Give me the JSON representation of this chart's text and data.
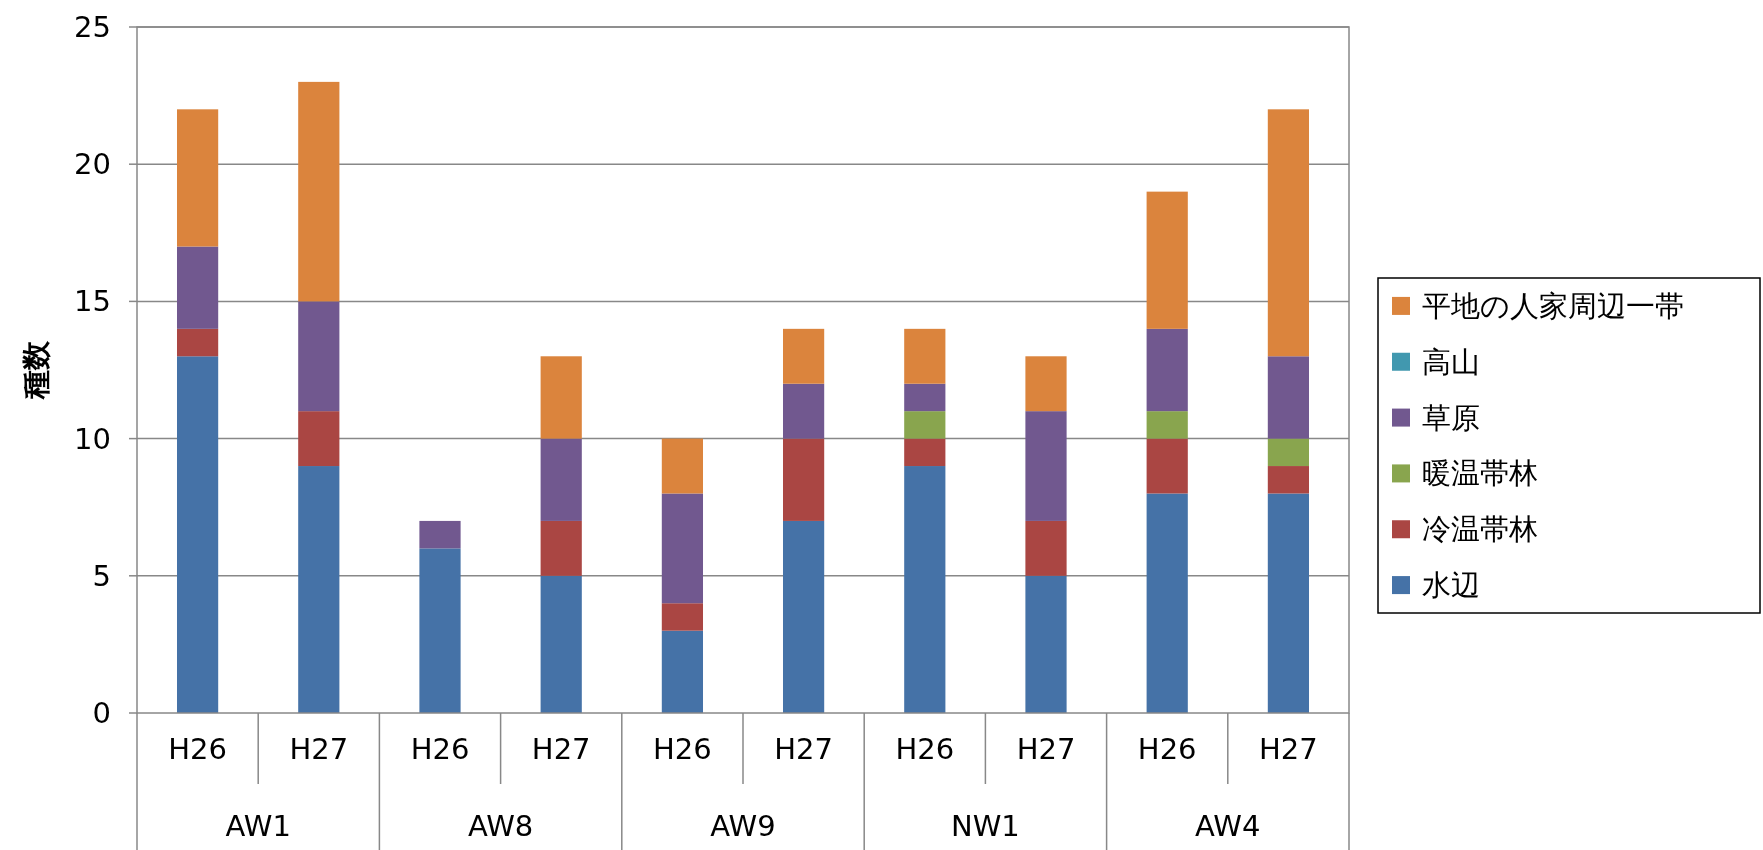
{
  "chart_data": {
    "type": "bar",
    "stacked": true,
    "ylabel": "種数",
    "categories": [
      "H26",
      "H27",
      "H26",
      "H27",
      "H26",
      "H27",
      "H26",
      "H27",
      "H26",
      "H27"
    ],
    "annotations": [
      "AW1",
      "AW8",
      "AW9",
      "NW1",
      "AW4"
    ],
    "series": [
      {
        "name": "水辺",
        "color": "#4572a7",
        "values": [
          13,
          9,
          6,
          5,
          3,
          7,
          9,
          5,
          8,
          8
        ]
      },
      {
        "name": "冷温帯林",
        "color": "#aa4643",
        "values": [
          1,
          2,
          0,
          2,
          1,
          3,
          1,
          2,
          2,
          1
        ]
      },
      {
        "name": "暖温帯林",
        "color": "#89a54e",
        "values": [
          0,
          0,
          0,
          0,
          0,
          0,
          1,
          0,
          1,
          1
        ]
      },
      {
        "name": "草原",
        "color": "#71588f",
        "values": [
          3,
          4,
          1,
          3,
          4,
          2,
          1,
          4,
          3,
          3
        ]
      },
      {
        "name": "高山",
        "color": "#4198af",
        "values": [
          0,
          0,
          0,
          0,
          0,
          0,
          0,
          0,
          0,
          0
        ]
      },
      {
        "name": "平地の人家周辺一帯",
        "color": "#db843d",
        "values": [
          5,
          8,
          0,
          3,
          2,
          2,
          2,
          2,
          5,
          9
        ]
      }
    ],
    "ylim": [
      0,
      25
    ],
    "yticks": [
      0,
      5,
      10,
      15,
      20,
      25
    ],
    "grid": "y",
    "legend": "right"
  }
}
